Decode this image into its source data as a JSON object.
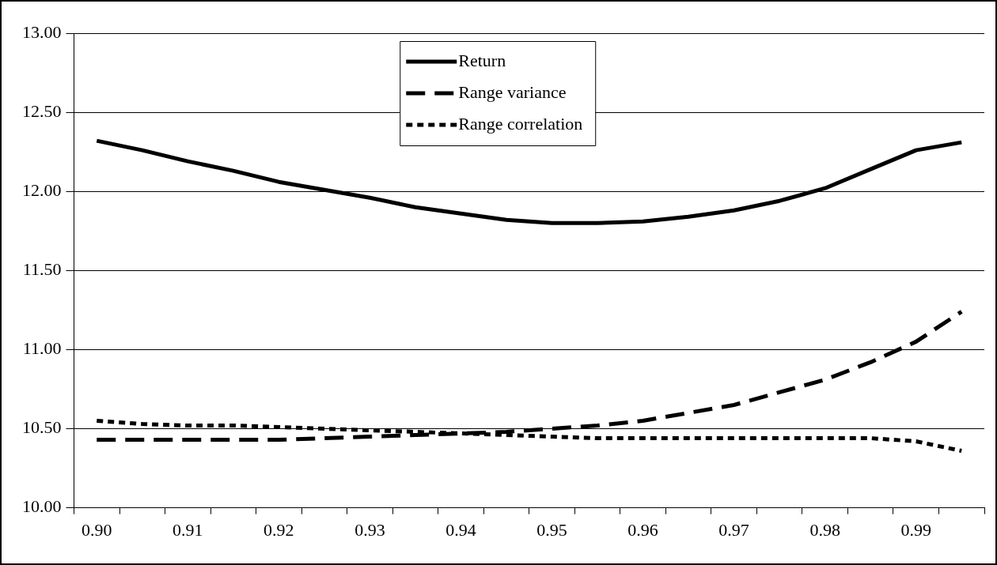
{
  "chart_data": {
    "type": "line",
    "categories": [
      "0.90",
      null,
      "0.91",
      null,
      "0.92",
      null,
      "0.93",
      null,
      "0.94",
      null,
      "0.95",
      null,
      "0.96",
      null,
      "0.97",
      null,
      "0.98",
      null,
      "0.99",
      null
    ],
    "series": [
      {
        "name": "Return",
        "color": "#000000",
        "line_style": "solid",
        "values": [
          12.32,
          12.26,
          12.19,
          12.13,
          12.06,
          12.01,
          11.96,
          11.9,
          11.86,
          11.82,
          11.8,
          11.8,
          11.81,
          11.84,
          11.88,
          11.94,
          12.02,
          12.14,
          12.26,
          12.31
        ]
      },
      {
        "name": "Range variance",
        "color": "#000000",
        "line_style": "dashed",
        "values": [
          10.43,
          10.43,
          10.43,
          10.43,
          10.43,
          10.44,
          10.45,
          10.46,
          10.47,
          10.48,
          10.5,
          10.52,
          10.55,
          10.6,
          10.65,
          10.73,
          10.81,
          10.92,
          11.05,
          11.24
        ]
      },
      {
        "name": "Range correlation",
        "color": "#000000",
        "line_style": "dotted",
        "values": [
          10.55,
          10.53,
          10.52,
          10.52,
          10.51,
          10.5,
          10.49,
          10.48,
          10.47,
          10.46,
          10.45,
          10.44,
          10.44,
          10.44,
          10.44,
          10.44,
          10.44,
          10.44,
          10.42,
          10.36
        ]
      }
    ],
    "ylim": [
      10,
      13
    ],
    "yticks": [
      {
        "value": 10,
        "label": "10.00"
      },
      {
        "value": 10.5,
        "label": "10.50"
      },
      {
        "value": 11,
        "label": "11.00"
      },
      {
        "value": 11.5,
        "label": "11.50"
      },
      {
        "value": 12,
        "label": "12.00"
      },
      {
        "value": 12.5,
        "label": "12.50"
      },
      {
        "value": 13,
        "label": "13.00"
      }
    ],
    "grid": "y",
    "legend": "top",
    "marker": "none"
  }
}
